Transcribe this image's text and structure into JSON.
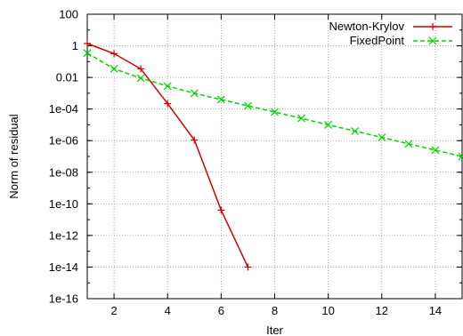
{
  "chart_data": {
    "type": "line",
    "xlabel": "Iter",
    "ylabel": "Norm of residual",
    "xlim": [
      1,
      15
    ],
    "ylim_exponent": [
      -16,
      2
    ],
    "yscale": "log",
    "grid": true,
    "legend_position": "top-right",
    "x_ticks": [
      2,
      4,
      6,
      8,
      10,
      12,
      14
    ],
    "x_tick_labels": [
      "2",
      "4",
      "6",
      "8",
      "10",
      "12",
      "14"
    ],
    "y_ticks": [
      100,
      1,
      0.01,
      0.0001,
      1e-06,
      1e-08,
      1e-10,
      1e-12,
      1e-14,
      1e-16
    ],
    "y_tick_labels": [
      "100",
      "1",
      "0.01",
      "1e-04",
      "1e-06",
      "1e-08",
      "1e-10",
      "1e-12",
      "1e-14",
      "1e-16"
    ],
    "series": [
      {
        "name": "Newton-Krylov",
        "color": "#d40000",
        "marker": "plus",
        "line": "solid",
        "x": [
          1,
          2,
          3,
          4,
          5,
          6,
          7
        ],
        "y": [
          1.4,
          0.32,
          0.035,
          0.00022,
          1.1e-06,
          4e-11,
          1e-14
        ]
      },
      {
        "name": "FixedPoint",
        "color": "#00d400",
        "marker": "cross",
        "line": "dashed",
        "x": [
          1,
          2,
          3,
          4,
          5,
          6,
          7,
          8,
          9,
          10,
          11,
          12,
          13,
          14,
          15
        ],
        "y": [
          0.35,
          0.035,
          0.009,
          0.0028,
          0.001,
          0.0004,
          0.00016,
          6.5e-05,
          2.6e-05,
          1e-05,
          4e-06,
          1.6e-06,
          6.3e-07,
          2.5e-07,
          1e-07
        ]
      }
    ]
  }
}
